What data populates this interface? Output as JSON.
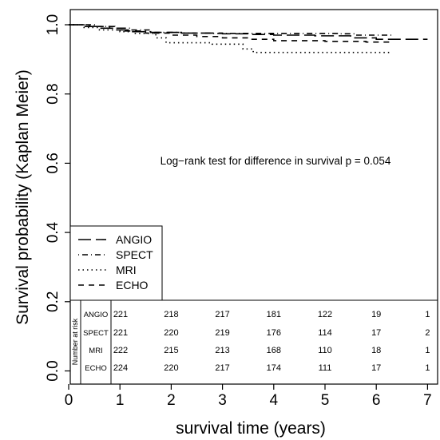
{
  "chart_data": {
    "type": "line",
    "title": "",
    "xlabel": "survival time (years)",
    "ylabel": "Survival probability (Kaplan Meier)",
    "xlim": [
      0,
      7
    ],
    "ylim": [
      0,
      1
    ],
    "xticks": [
      "0",
      "1",
      "2",
      "3",
      "4",
      "5",
      "6",
      "7"
    ],
    "yticks": [
      "0.0",
      "0.2",
      "0.4",
      "0.6",
      "0.8",
      "1.0"
    ],
    "grid": false,
    "annotation": "Log−rank test for difference in survival p = 0.054",
    "legend": {
      "placement": "left",
      "entries": [
        "ANGIO",
        "SPECT",
        "MRI",
        "ECHO"
      ]
    },
    "series": [
      {
        "name": "ANGIO",
        "line_style": "longdash",
        "points": [
          [
            0,
            1.0
          ],
          [
            0.3,
            0.995
          ],
          [
            0.6,
            0.99
          ],
          [
            0.9,
            0.985
          ],
          [
            1.2,
            0.98
          ],
          [
            1.6,
            0.978
          ],
          [
            2.2,
            0.976
          ],
          [
            3.0,
            0.974
          ],
          [
            3.5,
            0.972
          ],
          [
            4.0,
            0.97
          ],
          [
            4.8,
            0.968
          ],
          [
            5.5,
            0.962
          ],
          [
            6.0,
            0.958
          ],
          [
            7.0,
            0.958
          ]
        ]
      },
      {
        "name": "SPECT",
        "line_style": "dotdash",
        "points": [
          [
            0,
            1.0
          ],
          [
            0.5,
            0.995
          ],
          [
            0.9,
            0.99
          ],
          [
            1.2,
            0.985
          ],
          [
            1.6,
            0.978
          ],
          [
            2.2,
            0.976
          ],
          [
            2.8,
            0.975
          ],
          [
            3.2,
            0.975
          ],
          [
            4.0,
            0.975
          ],
          [
            5.3,
            0.974
          ],
          [
            5.6,
            0.97
          ],
          [
            6.3,
            0.97
          ]
        ]
      },
      {
        "name": "MRI",
        "line_style": "dotted",
        "points": [
          [
            0,
            1.0
          ],
          [
            0.3,
            0.992
          ],
          [
            0.6,
            0.985
          ],
          [
            1.0,
            0.98
          ],
          [
            1.3,
            0.975
          ],
          [
            1.7,
            0.962
          ],
          [
            1.9,
            0.948
          ],
          [
            2.3,
            0.948
          ],
          [
            2.8,
            0.944
          ],
          [
            3.2,
            0.944
          ],
          [
            3.4,
            0.93
          ],
          [
            3.6,
            0.92
          ],
          [
            4.4,
            0.92
          ],
          [
            5.2,
            0.92
          ],
          [
            6.3,
            0.92
          ]
        ]
      },
      {
        "name": "ECHO",
        "line_style": "dashed",
        "points": [
          [
            0,
            1.0
          ],
          [
            0.4,
            0.995
          ],
          [
            0.8,
            0.99
          ],
          [
            1.1,
            0.982
          ],
          [
            1.5,
            0.976
          ],
          [
            2.0,
            0.97
          ],
          [
            2.5,
            0.966
          ],
          [
            3.0,
            0.962
          ],
          [
            3.5,
            0.958
          ],
          [
            4.0,
            0.954
          ],
          [
            5.0,
            0.952
          ],
          [
            5.8,
            0.95
          ],
          [
            6.3,
            0.95
          ]
        ]
      }
    ],
    "risk_table": {
      "header": "Number at risk",
      "time_points": [
        1,
        2,
        3,
        4,
        5,
        6,
        7
      ],
      "rows": [
        {
          "label": "ANGIO",
          "values": [
            "221",
            "218",
            "217",
            "181",
            "122",
            "19",
            "1"
          ]
        },
        {
          "label": "SPECT",
          "values": [
            "221",
            "220",
            "219",
            "176",
            "114",
            "17",
            "2"
          ]
        },
        {
          "label": "MRI",
          "values": [
            "222",
            "215",
            "213",
            "168",
            "110",
            "18",
            "1"
          ]
        },
        {
          "label": "ECHO",
          "values": [
            "224",
            "220",
            "217",
            "174",
            "111",
            "17",
            "1"
          ]
        }
      ]
    }
  }
}
